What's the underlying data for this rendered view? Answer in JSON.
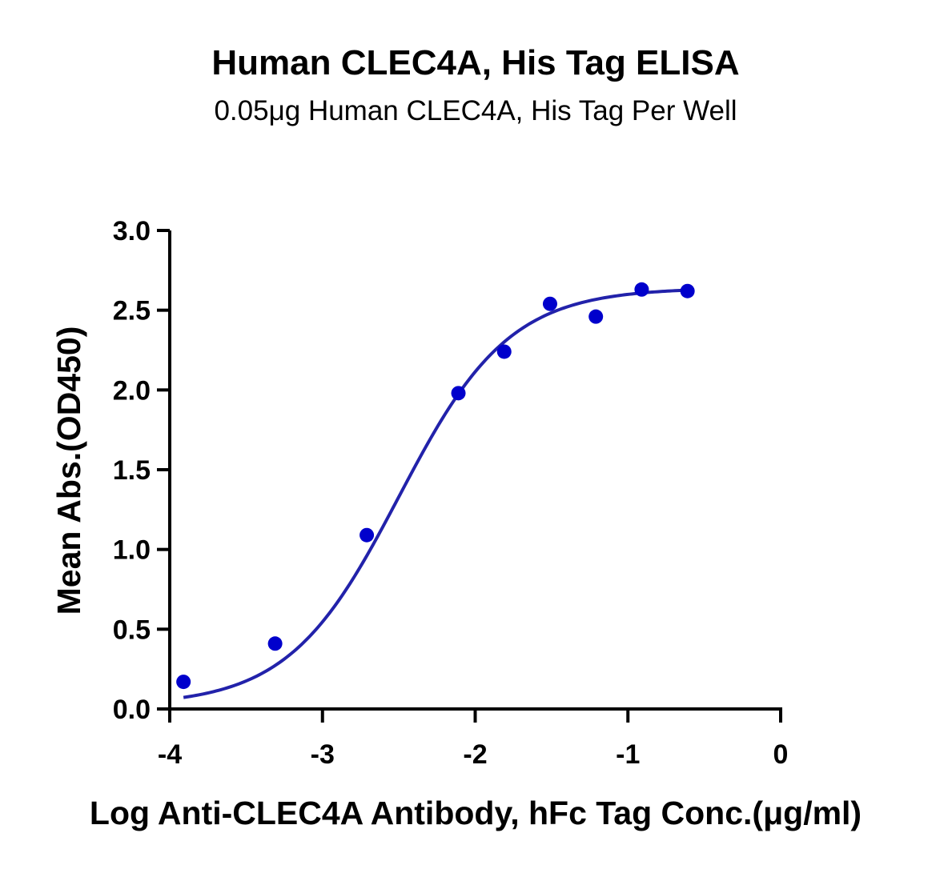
{
  "chart_data": {
    "type": "scatter",
    "title": "Human CLEC4A, His Tag ELISA",
    "subtitle": "0.05μg Human CLEC4A, His Tag Per Well",
    "xlabel": "Log Anti-CLEC4A Antibody, hFc Tag Conc.(μg/ml)",
    "ylabel": "Mean Abs.(OD450)",
    "xlim": [
      -4,
      0
    ],
    "ylim": [
      0,
      3.0
    ],
    "x_ticks": [
      -4,
      -3,
      -2,
      -1,
      0
    ],
    "x_tick_labels": [
      "-4",
      "-3",
      "-2",
      "-1",
      "0"
    ],
    "y_ticks": [
      0,
      0.5,
      1.0,
      1.5,
      2.0,
      2.5,
      3.0
    ],
    "y_tick_labels": [
      "0.0",
      "0.5",
      "1.0",
      "1.5",
      "2.0",
      "2.5",
      "3.0"
    ],
    "grid": false,
    "legend": "none",
    "series": [
      {
        "color": "#0000CC",
        "x": [
          -3.91,
          -3.31,
          -2.71,
          -2.11,
          -1.81,
          -1.51,
          -1.21,
          -0.91,
          -0.61
        ],
        "y": [
          0.17,
          0.41,
          1.09,
          1.98,
          2.24,
          2.54,
          2.46,
          2.63,
          2.62
        ]
      }
    ],
    "fit": {
      "type": "4PL sigmoid",
      "color": "#2222AA",
      "x_range": [
        -3.91,
        -0.61
      ],
      "bottom": 0.02,
      "top": 2.64,
      "log_ec50": -2.5,
      "hill_slope": 1.2
    }
  }
}
